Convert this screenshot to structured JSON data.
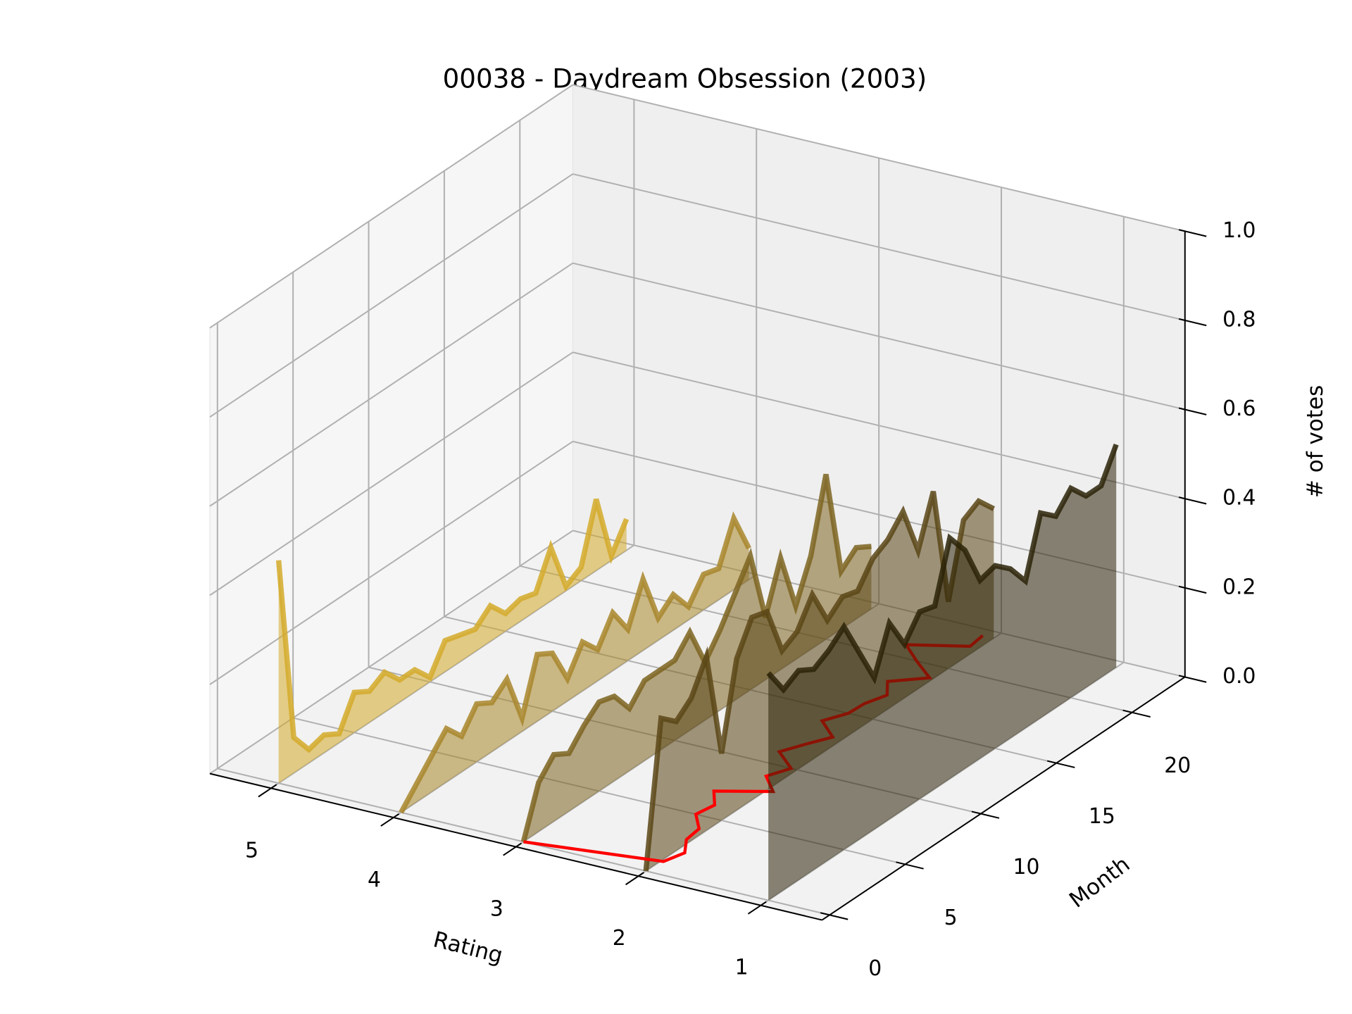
{
  "chart_data": {
    "type": "line3d",
    "title": "00038 - Daydream Obsession (2003)",
    "xlabel": "Rating",
    "ylabel": "Month",
    "zlabel": "# of votes",
    "xlim": [
      0.5,
      5.5
    ],
    "xinvert": true,
    "xticks": [
      1,
      2,
      3,
      4,
      5
    ],
    "ylim": [
      -0.5,
      23.5
    ],
    "yticks": [
      0,
      5,
      10,
      15,
      20
    ],
    "zlim": [
      0,
      1
    ],
    "zticks": [
      {
        "value": 0,
        "label": "0.0"
      },
      0.2,
      0.4,
      0.6,
      0.8,
      {
        "value": 1,
        "label": "1.0"
      }
    ],
    "grid": true,
    "months": [
      0,
      1,
      2,
      3,
      4,
      5,
      6,
      7,
      8,
      9,
      10,
      11,
      12,
      13,
      14,
      15,
      16,
      17,
      18,
      19,
      20,
      21,
      22,
      23
    ],
    "series": [
      {
        "rating": 5,
        "color": "#d4aa2a",
        "values": [
          0.5,
          0.08,
          0.03,
          0.04,
          0.02,
          0.09,
          0.07,
          0.09,
          0.05,
          0.05,
          0.01,
          0.07,
          0.06,
          0.05,
          0.08,
          0.04,
          0.05,
          0.04,
          0.12,
          0.01,
          0.03,
          0.16,
          0.01,
          0.07
        ]
      },
      {
        "rating": 4,
        "color": "#a8862a",
        "values": [
          0,
          0.04,
          0.08,
          0.12,
          0.08,
          0.13,
          0.11,
          0.14,
          0.03,
          0.15,
          0.13,
          0.05,
          0.11,
          0.07,
          0.13,
          0.07,
          0.16,
          0.05,
          0.08,
          0.03,
          0.08,
          0.07,
          0.16,
          0.07
        ]
      },
      {
        "rating": 3,
        "color": "#7d6420",
        "values": [
          0,
          0.11,
          0.15,
          0.13,
          0.17,
          0.2,
          0.19,
          0.14,
          0.18,
          0.18,
          0.18,
          0.22,
          0.13,
          0.18,
          0.24,
          0.3,
          0.14,
          0.25,
          0.12,
          0.21,
          0.37,
          0.13,
          0.16,
          0.14
        ]
      },
      {
        "rating": 2,
        "color": "#5a4616",
        "values": [
          0,
          0.32,
          0.29,
          0.32,
          0.39,
          0.15,
          0.34,
          0.41,
          0.4,
          0.29,
          0.31,
          0.37,
          0.29,
          0.32,
          0.31,
          0.36,
          0.38,
          0.42,
          0.31,
          0.42,
          0.15,
          0.31,
          0.33,
          0.29
        ]
      },
      {
        "rating": 1,
        "color": "#2b2308",
        "values": [
          0.51,
          0.45,
          0.47,
          0.45,
          0.47,
          0.5,
          0.42,
          0.34,
          0.44,
          0.37,
          0.42,
          0.41,
          0.54,
          0.49,
          0.4,
          0.41,
          0.38,
          0.33,
          0.46,
          0.43,
          0.47,
          0.43,
          0.43,
          0.5
        ]
      }
    ],
    "mean": {
      "color": "#ff0000",
      "values": [
        3,
        1.98,
        1.93,
        2.04,
        2.06,
        2.21,
        2.18,
        2.31,
        1.95,
        2.13,
        2.05,
        2.27,
        2.18,
        2.08,
        2.29,
        2.2,
        2.19,
        2.13,
        2.25,
        2.03,
        2.26,
        2.47,
        2.07,
        2.09
      ]
    }
  }
}
